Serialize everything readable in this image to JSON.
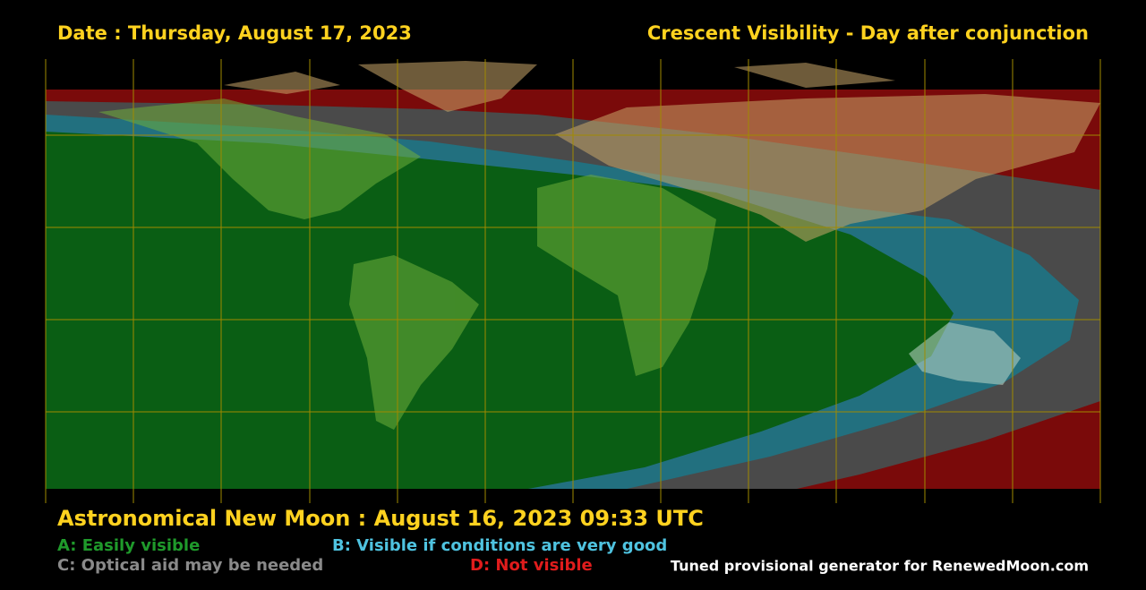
{
  "header": {
    "date": "Date : Thursday, August 17, 2023",
    "title": "Crescent Visibility - Day after conjunction"
  },
  "footer": {
    "new_moon": "Astronomical New Moon : August 16, 2023 09:33 UTC",
    "legend": [
      "A: Easily visible",
      "B: Visible if conditions are very good",
      "C: Optical aid may be needed",
      "D: Not visible"
    ],
    "credit": "Tuned provisional generator for RenewedMoon.com"
  }
}
